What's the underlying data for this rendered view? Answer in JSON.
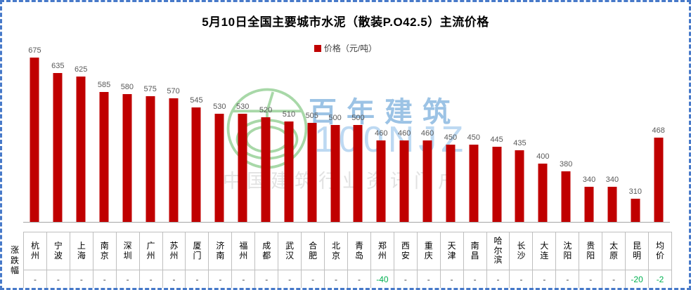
{
  "title": "5月10日全国主要城市水泥（散装P.O42.5）主流价格",
  "legend": {
    "label": "价格（元/吨）",
    "color": "#C00000"
  },
  "row_header": "涨跌幅",
  "watermark": {
    "brand": "百年建筑",
    "brand_latin": "100NJZ",
    "tagline": "中国建筑行业资讯门户"
  },
  "chart_data": {
    "type": "bar",
    "title": "5月10日全国主要城市水泥（散装P.O42.5）主流价格",
    "legend_entries": [
      "价格（元/吨）"
    ],
    "legend_position": "top",
    "grid": false,
    "bar_color": "#C00000",
    "ylim": [
      250,
      700
    ],
    "categories": [
      "杭州",
      "宁波",
      "上海",
      "南京",
      "深圳",
      "广州",
      "苏州",
      "厦门",
      "济南",
      "福州",
      "成都",
      "武汉",
      "合肥",
      "北京",
      "青岛",
      "郑州",
      "西安",
      "重庆",
      "天津",
      "南昌",
      "哈尔滨",
      "长沙",
      "大连",
      "沈阳",
      "贵阳",
      "太原",
      "昆明",
      "均价"
    ],
    "values": [
      675,
      635,
      625,
      585,
      580,
      575,
      570,
      545,
      530,
      530,
      520,
      510,
      505,
      500,
      500,
      460,
      460,
      460,
      450,
      450,
      445,
      435,
      400,
      380,
      340,
      340,
      310,
      468
    ],
    "changes": [
      "-",
      "-",
      "-",
      "-",
      "-",
      "-",
      "-",
      "-",
      "-",
      "-",
      "-",
      "-",
      "-",
      "-",
      "-",
      "-40",
      "-",
      "-",
      "-",
      "-",
      "-",
      "-",
      "-",
      "-",
      "-",
      "-",
      "-20",
      "-2"
    ],
    "change_row_label": "涨跌幅"
  },
  "colors": {
    "bar": "#C00000",
    "value_label": "#595959",
    "axis_line": "#a6a6a6",
    "table_border": "#bfbfbf",
    "negative_change": "#00B050",
    "frame_border": "#4779c9",
    "watermark_green": "#a8d8a8",
    "watermark_blue": "#9cc3e5",
    "watermark_gray": "#e2e2e2"
  }
}
